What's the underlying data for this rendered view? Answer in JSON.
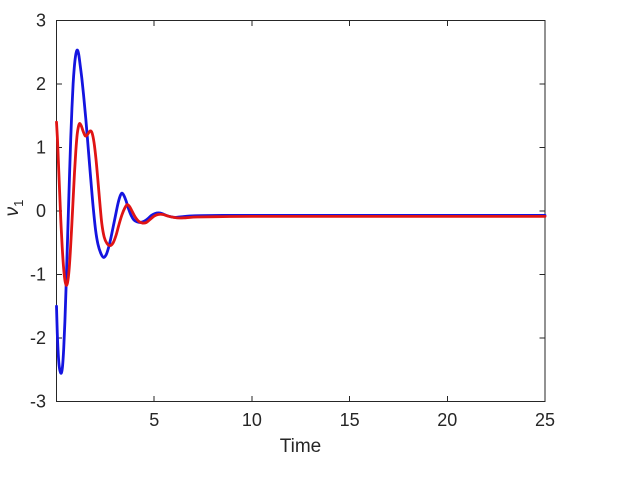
{
  "figure": {
    "background": "#ffffff",
    "axis_color": "#262626",
    "tick_label_color": "#262626"
  },
  "chart_data": {
    "type": "line",
    "title": "",
    "xlabel": "Time",
    "ylabel": "ν",
    "ylabel_sub": "1",
    "xlim": [
      0,
      25
    ],
    "ylim": [
      -3,
      3
    ],
    "xticks": [
      5,
      10,
      15,
      20,
      25
    ],
    "yticks": [
      -3,
      -2,
      -1,
      0,
      1,
      2,
      3
    ],
    "grid": false,
    "box": true,
    "tick_direction": "in",
    "legend": null,
    "series": [
      {
        "name": "blue-response",
        "color": "#1414E0",
        "width": 2.8,
        "points": [
          [
            0,
            -1.5
          ],
          [
            0.04,
            -1.92
          ],
          [
            0.08,
            -2.2
          ],
          [
            0.13,
            -2.42
          ],
          [
            0.19,
            -2.53
          ],
          [
            0.25,
            -2.55
          ],
          [
            0.31,
            -2.44
          ],
          [
            0.37,
            -2.16
          ],
          [
            0.43,
            -1.74
          ],
          [
            0.49,
            -1.2
          ],
          [
            0.55,
            -0.6
          ],
          [
            0.61,
            0.0
          ],
          [
            0.67,
            0.6
          ],
          [
            0.73,
            1.15
          ],
          [
            0.79,
            1.62
          ],
          [
            0.85,
            2.0
          ],
          [
            0.91,
            2.26
          ],
          [
            0.97,
            2.43
          ],
          [
            1.03,
            2.52
          ],
          [
            1.08,
            2.53
          ],
          [
            1.14,
            2.46
          ],
          [
            1.21,
            2.3
          ],
          [
            1.3,
            2.08
          ],
          [
            1.4,
            1.78
          ],
          [
            1.5,
            1.45
          ],
          [
            1.6,
            1.08
          ],
          [
            1.7,
            0.7
          ],
          [
            1.8,
            0.33
          ],
          [
            1.88,
            0.05
          ],
          [
            2.0,
            -0.3
          ],
          [
            2.12,
            -0.52
          ],
          [
            2.26,
            -0.66
          ],
          [
            2.4,
            -0.73
          ],
          [
            2.54,
            -0.69
          ],
          [
            2.66,
            -0.58
          ],
          [
            2.78,
            -0.43
          ],
          [
            2.9,
            -0.25
          ],
          [
            3.02,
            -0.07
          ],
          [
            3.14,
            0.11
          ],
          [
            3.25,
            0.23
          ],
          [
            3.34,
            0.28
          ],
          [
            3.44,
            0.25
          ],
          [
            3.56,
            0.16
          ],
          [
            3.68,
            0.04
          ],
          [
            3.82,
            -0.07
          ],
          [
            3.96,
            -0.14
          ],
          [
            4.12,
            -0.17
          ],
          [
            4.3,
            -0.18
          ],
          [
            4.5,
            -0.16
          ],
          [
            4.68,
            -0.12
          ],
          [
            4.86,
            -0.07
          ],
          [
            5.04,
            -0.04
          ],
          [
            5.22,
            -0.03
          ],
          [
            5.4,
            -0.04
          ],
          [
            5.62,
            -0.07
          ],
          [
            5.85,
            -0.09
          ],
          [
            6.1,
            -0.1
          ],
          [
            6.4,
            -0.09
          ],
          [
            6.8,
            -0.08
          ],
          [
            7.4,
            -0.073
          ],
          [
            8.5,
            -0.07
          ],
          [
            10,
            -0.07
          ],
          [
            13,
            -0.07
          ],
          [
            17,
            -0.07
          ],
          [
            21,
            -0.07
          ],
          [
            25,
            -0.07
          ]
        ]
      },
      {
        "name": "red-response",
        "color": "#E01414",
        "width": 2.8,
        "points": [
          [
            0,
            1.4
          ],
          [
            0.05,
            1.12
          ],
          [
            0.1,
            0.75
          ],
          [
            0.16,
            0.3
          ],
          [
            0.22,
            -0.14
          ],
          [
            0.29,
            -0.56
          ],
          [
            0.36,
            -0.88
          ],
          [
            0.43,
            -1.09
          ],
          [
            0.5,
            -1.17
          ],
          [
            0.57,
            -1.12
          ],
          [
            0.64,
            -0.94
          ],
          [
            0.71,
            -0.63
          ],
          [
            0.78,
            -0.24
          ],
          [
            0.85,
            0.18
          ],
          [
            0.92,
            0.6
          ],
          [
            0.99,
            0.95
          ],
          [
            1.06,
            1.21
          ],
          [
            1.13,
            1.34
          ],
          [
            1.19,
            1.38
          ],
          [
            1.27,
            1.34
          ],
          [
            1.37,
            1.25
          ],
          [
            1.48,
            1.18
          ],
          [
            1.6,
            1.21
          ],
          [
            1.72,
            1.26
          ],
          [
            1.82,
            1.23
          ],
          [
            1.92,
            1.08
          ],
          [
            2.02,
            0.82
          ],
          [
            2.12,
            0.48
          ],
          [
            2.22,
            0.12
          ],
          [
            2.32,
            -0.2
          ],
          [
            2.44,
            -0.41
          ],
          [
            2.58,
            -0.51
          ],
          [
            2.74,
            -0.545
          ],
          [
            2.9,
            -0.5
          ],
          [
            3.05,
            -0.38
          ],
          [
            3.2,
            -0.21
          ],
          [
            3.35,
            -0.06
          ],
          [
            3.5,
            0.05
          ],
          [
            3.62,
            0.1
          ],
          [
            3.74,
            0.07
          ],
          [
            3.88,
            -0.01
          ],
          [
            4.02,
            -0.09
          ],
          [
            4.2,
            -0.16
          ],
          [
            4.4,
            -0.19
          ],
          [
            4.6,
            -0.18
          ],
          [
            4.8,
            -0.13
          ],
          [
            5.0,
            -0.08
          ],
          [
            5.2,
            -0.055
          ],
          [
            5.45,
            -0.055
          ],
          [
            5.7,
            -0.08
          ],
          [
            6.0,
            -0.1
          ],
          [
            6.3,
            -0.11
          ],
          [
            6.65,
            -0.105
          ],
          [
            7.2,
            -0.095
          ],
          [
            8.5,
            -0.088
          ],
          [
            10,
            -0.085
          ],
          [
            13,
            -0.085
          ],
          [
            17,
            -0.085
          ],
          [
            21,
            -0.085
          ],
          [
            25,
            -0.085
          ]
        ]
      }
    ]
  }
}
